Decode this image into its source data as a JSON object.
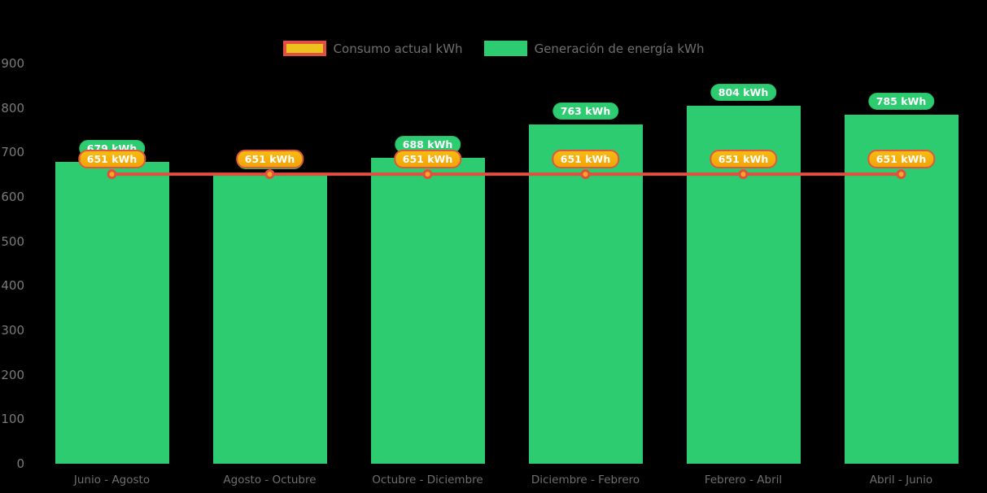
{
  "colors": {
    "background": "#000000",
    "bar_green": "#2ecc71",
    "line_red": "#e04f3f",
    "marker_fill": "#f9a91c",
    "badge_gold": "#f5ad0a",
    "badge_border": "#e2563e",
    "legend_gold": "#eec21c",
    "axis_text": "#7a7a7a",
    "category_text": "#6f6f6f",
    "legend_text": "#6f6f6f"
  },
  "legend": {
    "items": [
      {
        "label": "Consumo actual kWh",
        "swatch": "consumo"
      },
      {
        "label": "Generación de energía kWh",
        "swatch": "generacion"
      }
    ]
  },
  "chart_data": {
    "type": "bar",
    "categories": [
      "Junio - Agosto",
      "Agosto - Octubre",
      "Octubre - Diciembre",
      "Diciembre - Febrero",
      "Febrero - Abril",
      "Abril - Junio"
    ],
    "series": [
      {
        "name": "Generación de energía kWh",
        "type": "bar",
        "color": "#2ecc71",
        "values": [
          679,
          651,
          688,
          763,
          804,
          785
        ]
      },
      {
        "name": "Consumo actual kWh",
        "type": "line",
        "color": "#e04f3f",
        "values": [
          651,
          651,
          651,
          651,
          651,
          651
        ]
      }
    ],
    "unit": "kWh",
    "title": "",
    "xlabel": "",
    "ylabel": "",
    "ylim": [
      0,
      900
    ],
    "yticks": [
      0,
      100,
      200,
      300,
      400,
      500,
      600,
      700,
      800,
      900
    ],
    "grid": false,
    "legend_position": "top",
    "data_labels": true
  }
}
